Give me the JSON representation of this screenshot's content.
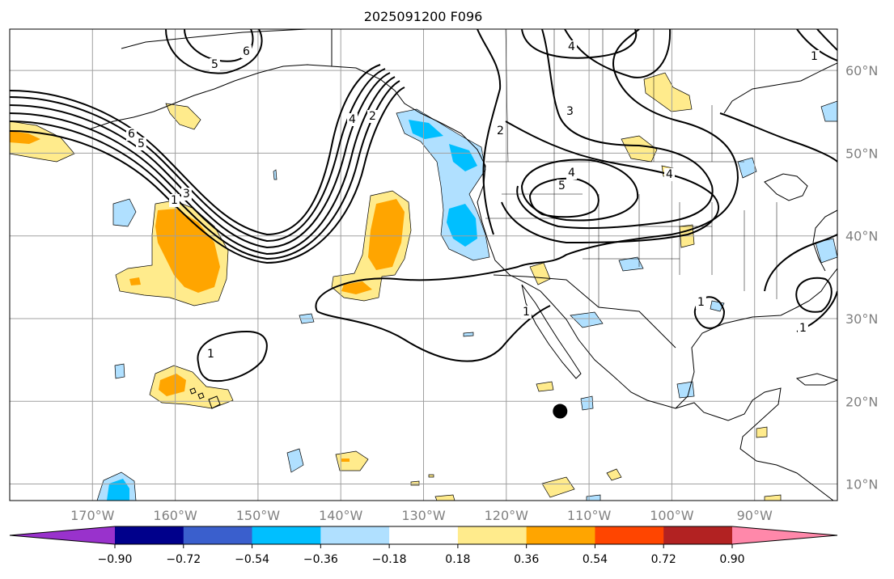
{
  "title": "2025091200 F096",
  "map": {
    "lon_range": [
      -180,
      -80
    ],
    "lat_range": [
      8,
      65
    ],
    "lon_gridlines": [
      -170,
      -160,
      -150,
      -140,
      -130,
      -120,
      -110,
      -100,
      -90
    ],
    "lat_gridlines": [
      10,
      20,
      30,
      40,
      50,
      60
    ],
    "lon_labels": [
      "170°W",
      "160°W",
      "150°W",
      "140°W",
      "130°W",
      "120°W",
      "110°W",
      "100°W",
      "90°W"
    ],
    "lat_labels": [
      "10°N",
      "20°N",
      "30°N",
      "40°N",
      "50°N",
      "60°N"
    ],
    "contour_labels": [
      "1",
      "1",
      "1",
      "1",
      "1",
      "1",
      "2",
      "2",
      "3",
      "3",
      "4",
      "4",
      "4",
      "4",
      "5",
      "5",
      "5",
      "6",
      "6"
    ],
    "marker": {
      "lon": -113.5,
      "lat": 18.8,
      "color": "#000000"
    }
  },
  "colorbar": {
    "colors": [
      "#9932cc",
      "#00008b",
      "#3a5fcd",
      "#00bfff",
      "#b0e0ff",
      "#ffffff",
      "#ffeb8c",
      "#ffa500",
      "#ff4500",
      "#b22222",
      "#ff88aa"
    ],
    "tick_labels": [
      "−0.90",
      "−0.72",
      "−0.54",
      "−0.36",
      "−0.18",
      "0.18",
      "0.36",
      "0.54",
      "0.72",
      "0.90"
    ]
  }
}
